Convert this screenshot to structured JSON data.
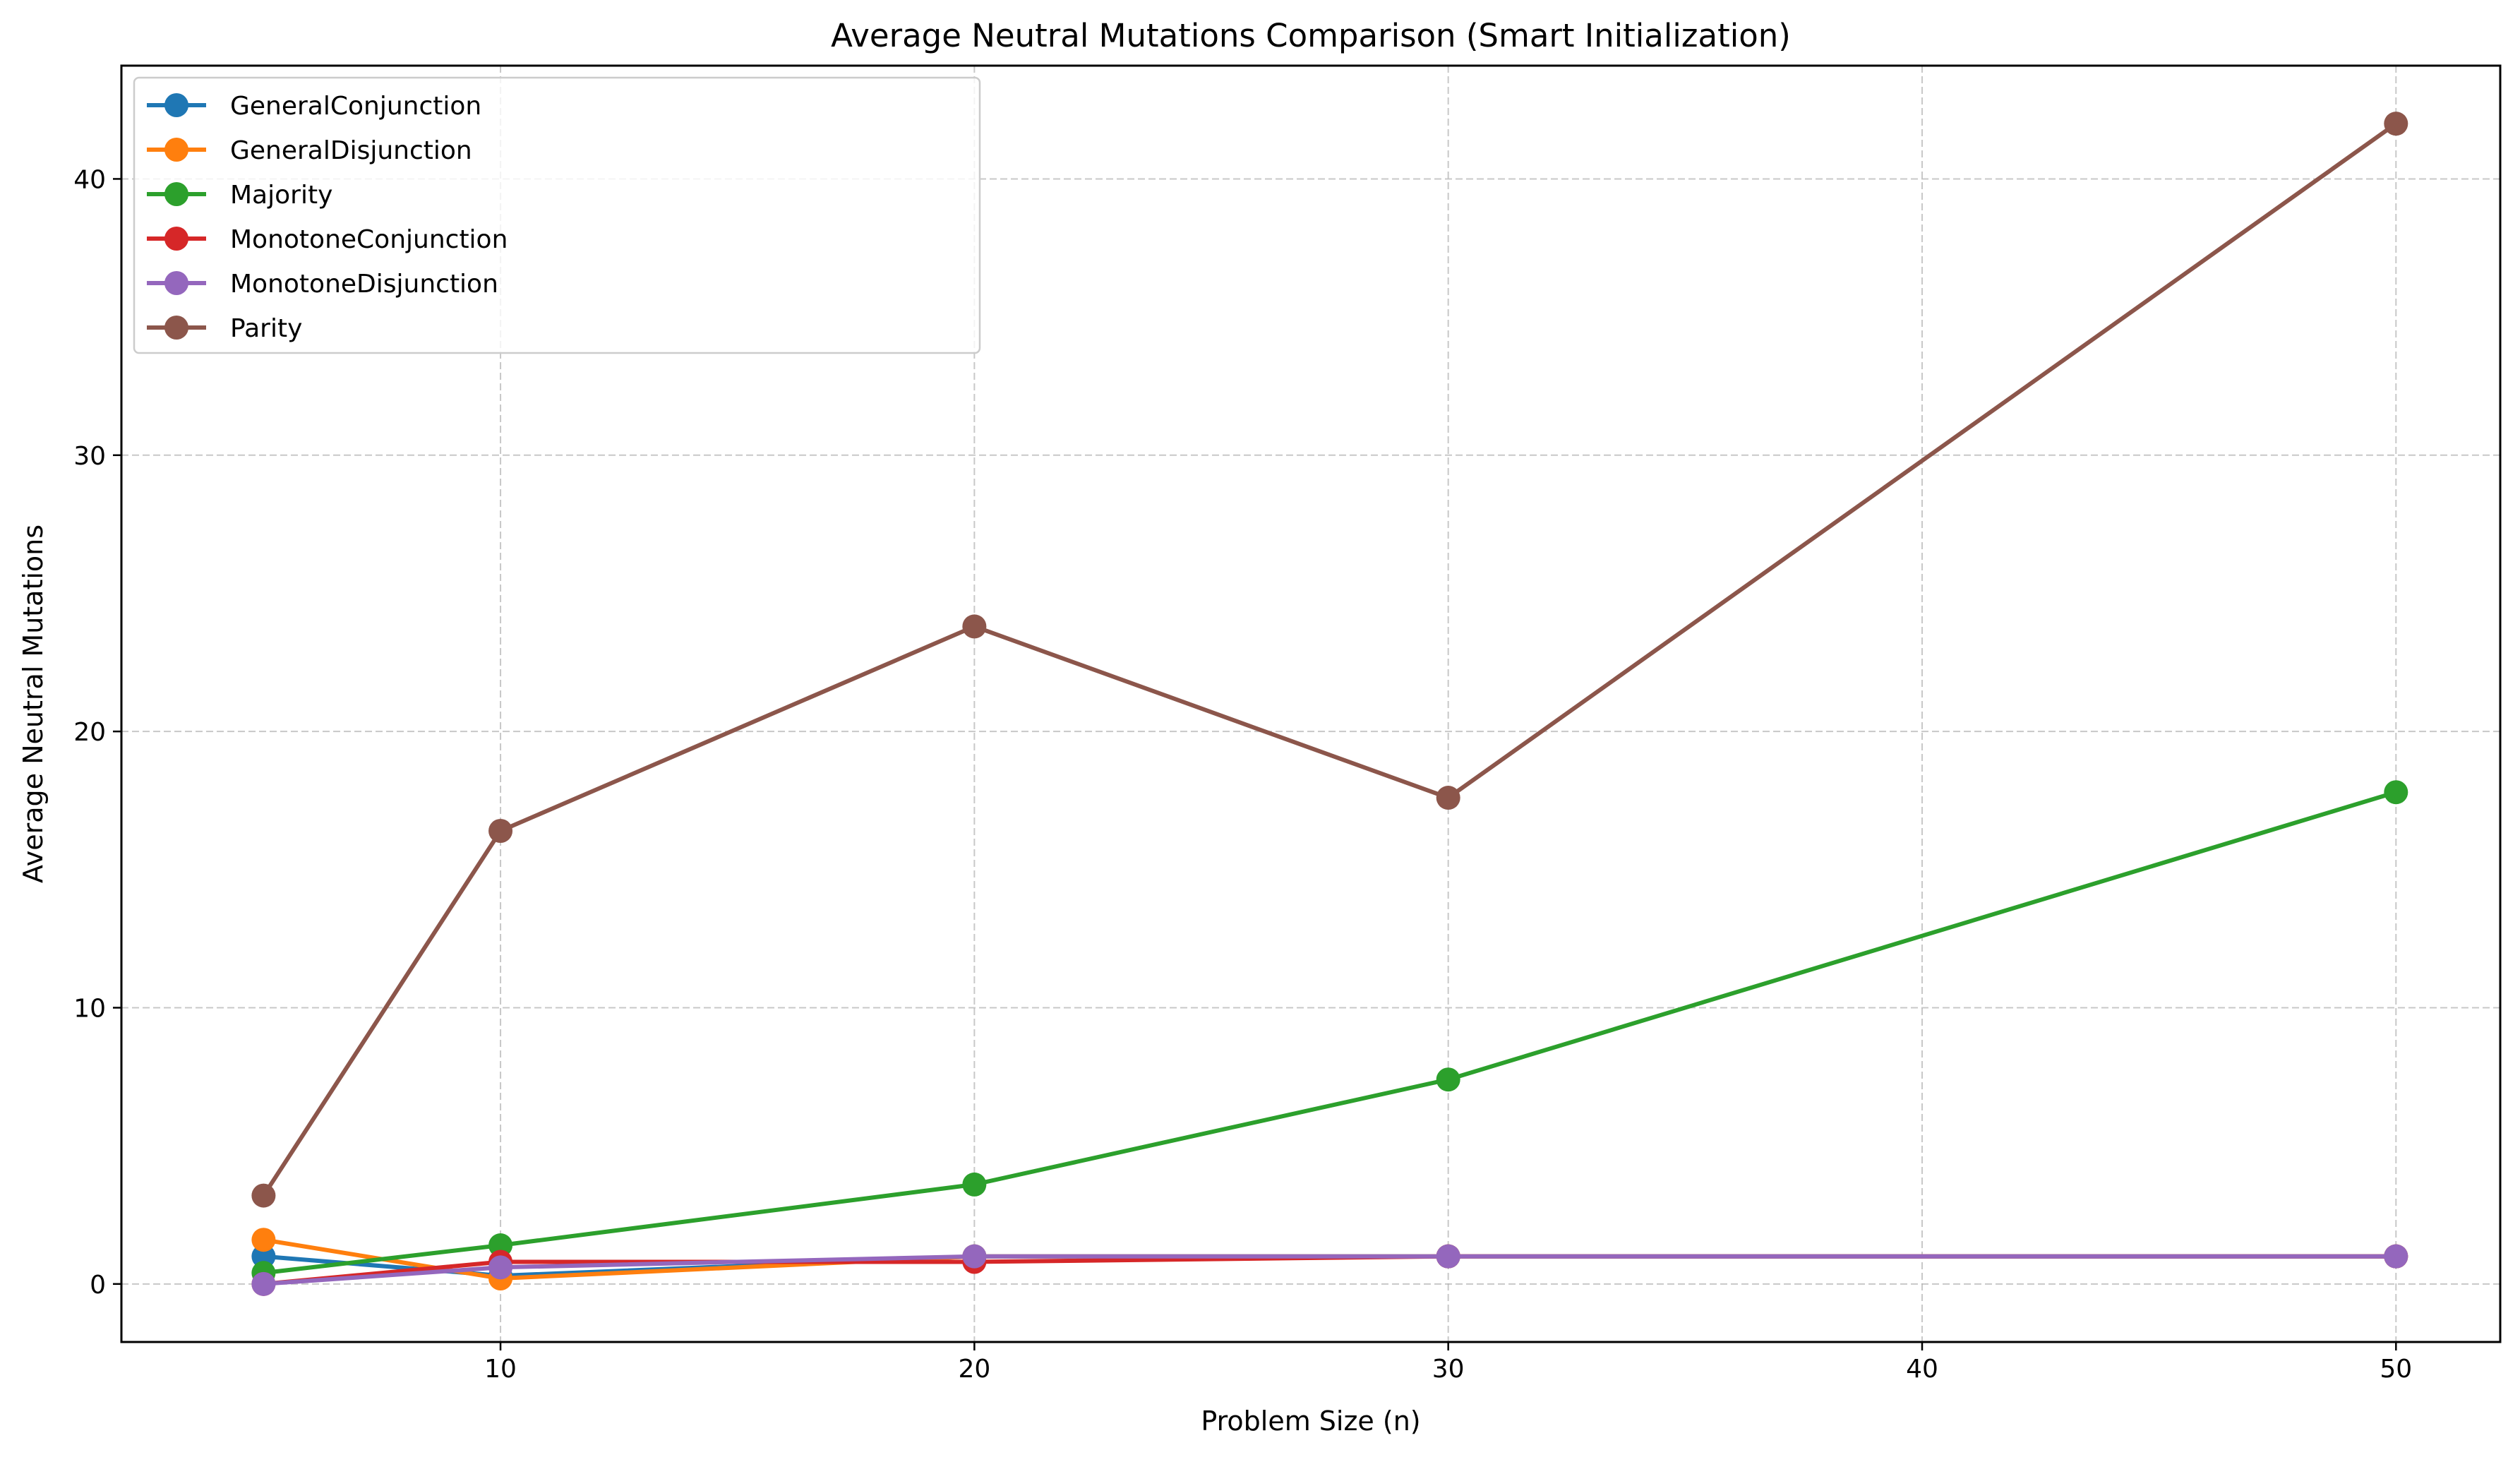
{
  "chart_data": {
    "type": "line",
    "title": "Average Neutral Mutations Comparison (Smart Initialization)",
    "xlabel": "Problem Size (n)",
    "ylabel": "Average Neutral Mutations",
    "x": [
      5,
      10,
      20,
      30,
      50
    ],
    "xlim": [
      2,
      52.2
    ],
    "ylim": [
      -2.1,
      44.1
    ],
    "xticks": [
      "10",
      "20",
      "30",
      "40",
      "50"
    ],
    "yticks": [
      "0",
      "10",
      "20",
      "30",
      "40"
    ],
    "grid": true,
    "legend_position": "top-left",
    "series": [
      {
        "name": "GeneralConjunction",
        "color": "#1f77b4",
        "values": [
          1.0,
          0.3,
          1.0,
          1.0,
          1.0
        ]
      },
      {
        "name": "GeneralDisjunction",
        "color": "#ff7f0e",
        "values": [
          1.6,
          0.2,
          1.0,
          1.0,
          1.0
        ]
      },
      {
        "name": "Majority",
        "color": "#2ca02c",
        "values": [
          0.4,
          1.4,
          3.6,
          7.4,
          17.8
        ]
      },
      {
        "name": "MonotoneConjunction",
        "color": "#d62728",
        "values": [
          0.0,
          0.8,
          0.8,
          1.0,
          1.0
        ]
      },
      {
        "name": "MonotoneDisjunction",
        "color": "#9467bd",
        "values": [
          0.0,
          0.6,
          1.0,
          1.0,
          1.0
        ]
      },
      {
        "name": "Parity",
        "color": "#8c564b",
        "values": [
          3.2,
          16.4,
          23.8,
          17.6,
          42.0
        ]
      }
    ]
  }
}
